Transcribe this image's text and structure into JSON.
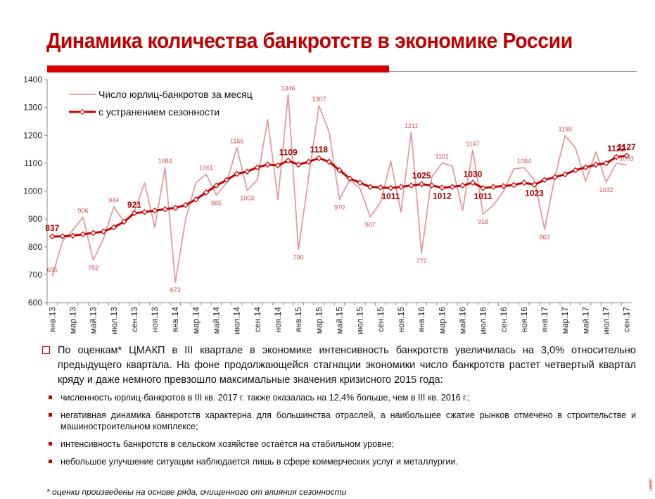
{
  "title": "Динамика количества банкротств в экономике России",
  "chart_data": {
    "type": "line",
    "categories": [
      "янв.13",
      null,
      "мар.13",
      null,
      "май.13",
      null,
      "июл.13",
      null,
      "сен.13",
      null,
      "ноя.13",
      null,
      "янв.14",
      null,
      "мар.14",
      null,
      "май.14",
      null,
      "июл.14",
      null,
      "сен.14",
      null,
      "ноя.14",
      null,
      "янв.15",
      null,
      "мар.15",
      null,
      "май.15",
      null,
      "июл.15",
      null,
      "сен.15",
      null,
      "ноя.15",
      null,
      "янв.16",
      null,
      "мар.16",
      null,
      "май.16",
      null,
      "июл.16",
      null,
      "сен.16",
      null,
      "ноя.16",
      null,
      "янв.17",
      null,
      "мар.17",
      null,
      "май.17",
      null,
      "июл.17",
      null,
      "сен.17"
    ],
    "series": [
      {
        "name": "Число юрлиц-банкротов за месяц",
        "color": "#e39c9c",
        "values": [
          695,
          820,
          860,
          906,
          752,
          830,
          944,
          890,
          925,
          1030,
          870,
          1084,
          673,
          900,
          1030,
          1061,
          985,
          1030,
          1156,
          1003,
          1040,
          1257,
          970,
          1346,
          790,
          1050,
          1307,
          1210,
          970,
          1040,
          1010,
          907,
          960,
          1108,
          925,
          1211,
          777,
          1050,
          1101,
          1090,
          930,
          1147,
          918,
          950,
          1000,
          1080,
          1084,
          1040,
          863,
          1050,
          1199,
          1155,
          1035,
          1140,
          1032,
          1100,
          1093
        ],
        "value_labels": [
          "695",
          null,
          null,
          "906",
          "752",
          null,
          "944",
          null,
          null,
          null,
          null,
          "1084",
          "673",
          null,
          null,
          "1061",
          "985",
          null,
          "1156",
          "1003",
          null,
          null,
          null,
          "1346",
          "790",
          null,
          "1307",
          null,
          "970",
          null,
          null,
          "907",
          null,
          null,
          null,
          "1211",
          "777",
          null,
          "1101",
          null,
          null,
          "1147",
          "918",
          null,
          null,
          null,
          "1084",
          null,
          "863",
          null,
          "1199",
          null,
          null,
          null,
          "1032",
          null,
          "1093"
        ]
      },
      {
        "name": "с устранением сезонности",
        "color": "#cc0000",
        "values": [
          837,
          838,
          840,
          845,
          850,
          855,
          870,
          890,
          921,
          925,
          930,
          935,
          940,
          950,
          970,
          995,
          1020,
          1040,
          1062,
          1070,
          1085,
          1095,
          1092,
          1109,
          1095,
          1105,
          1118,
          1105,
          1075,
          1045,
          1030,
          1015,
          1013,
          1011,
          1015,
          1020,
          1025,
          1020,
          1012,
          1015,
          1020,
          1030,
          1011,
          1015,
          1018,
          1022,
          1030,
          1023,
          1040,
          1050,
          1060,
          1075,
          1085,
          1095,
          1100,
          1122,
          1127
        ],
        "value_labels": [
          "837",
          null,
          null,
          null,
          null,
          null,
          null,
          null,
          "921",
          null,
          null,
          null,
          null,
          null,
          null,
          null,
          null,
          null,
          null,
          null,
          null,
          null,
          null,
          "1109",
          null,
          null,
          "1118",
          null,
          null,
          null,
          null,
          null,
          null,
          "1011",
          null,
          null,
          "1025",
          null,
          "1012",
          null,
          null,
          "1030",
          "1011",
          null,
          null,
          null,
          null,
          "1023",
          null,
          null,
          null,
          null,
          null,
          null,
          null,
          "1122",
          "1127"
        ]
      }
    ],
    "ylim": [
      600,
      1400
    ],
    "yticks": [
      600,
      700,
      800,
      900,
      1000,
      1100,
      1200,
      1300,
      1400
    ],
    "legend": "upper left"
  },
  "text": {
    "main": "По оценкам* ЦМАКП в III квартале в экономике интенсивность банкротств увеличилась на 3,0% относительно предыдущего квартала. На фоне продолжающейся стагнации экономики число банкротств растет четвертый квартал кряду и даже немного превзошло максимальные значения кризисного 2015 года:",
    "bullets": [
      "численность юрлиц-банкротов в III кв. 2017 г. также оказалась на 12,4% больше, чем в III кв. 2016 г.;",
      "негативная динамика банкротств характерна для большинства отраслей, а наибольшее сжатие рынков отмечено в строительстве и машиностроительном комплексе;",
      "интенсивность банкротств в сельском хозяйстве остаётся на стабильном уровне;",
      "небольшое улучшение ситуации наблюдается лишь в сфере коммерческих услуг и металлургии."
    ],
    "footnote": "* оценки произведены на основе ряда, очищенного от влияния сезонности",
    "brand": "ЦМАКП"
  }
}
